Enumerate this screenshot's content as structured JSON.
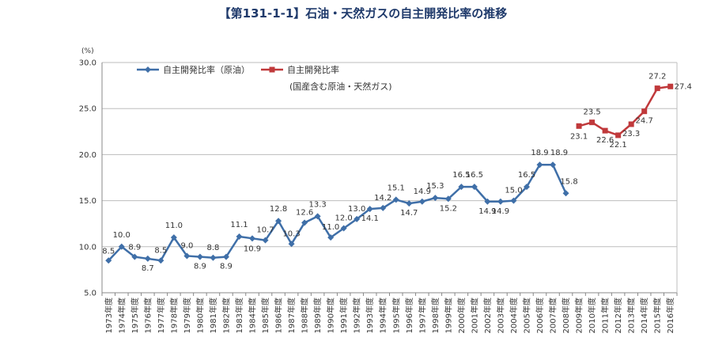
{
  "chart_data": {
    "type": "line",
    "title": "【第131-1-1】石油・天然ガスの自主開発比率の推移",
    "ylabel": "(%)",
    "ylim": [
      5.0,
      30.0
    ],
    "yticks": [
      "5.0",
      "10.0",
      "15.0",
      "20.0",
      "25.0",
      "30.0"
    ],
    "grid": true,
    "legend": "top-left",
    "categories": [
      "1973年度",
      "1974年度",
      "1975年度",
      "1976年度",
      "1977年度",
      "1978年度",
      "1979年度",
      "1980年度",
      "1981年度",
      "1982年度",
      "1983年度",
      "1984年度",
      "1985年度",
      "1986年度",
      "1987年度",
      "1988年度",
      "1989年度",
      "1990年度",
      "1991年度",
      "1992年度",
      "1993年度",
      "1994年度",
      "1995年度",
      "1996年度",
      "1997年度",
      "1998年度",
      "1999年度",
      "2000年度",
      "2001年度",
      "2002年度",
      "2003年度",
      "2004年度",
      "2005年度",
      "2006年度",
      "2007年度",
      "2008年度",
      "2009年度",
      "2010年度",
      "2011年度",
      "2012年度",
      "2013年度",
      "2014年度",
      "2015年度",
      "2016年度"
    ],
    "series": [
      {
        "name": "自主開発比率（原油）",
        "color": "#3f6fa8",
        "marker": "diamond",
        "values": [
          8.5,
          10.0,
          8.9,
          8.7,
          8.5,
          11.0,
          9.0,
          8.9,
          8.8,
          8.9,
          11.1,
          10.9,
          10.7,
          12.8,
          10.3,
          12.6,
          13.3,
          11.0,
          12.0,
          13.0,
          14.1,
          14.2,
          15.1,
          14.7,
          14.9,
          15.3,
          15.2,
          16.5,
          16.5,
          14.9,
          14.9,
          15.0,
          16.5,
          18.9,
          18.9,
          15.8,
          null,
          null,
          null,
          null,
          null,
          null,
          null,
          null
        ],
        "labels": [
          "8.5",
          "10.0",
          "8.9",
          "8.7",
          "8.5",
          "11.0",
          "9.0",
          "8.9",
          "8.8",
          "8.9",
          "11.1",
          "10.9",
          "10.7",
          "12.8",
          "10.3",
          "12.6",
          "13.3",
          "11.0",
          "12.0",
          "13.0",
          "14.1",
          "14.2",
          "15.1",
          "14.7",
          "14.9",
          "15.3",
          "15.2",
          "16.5",
          "16.5",
          "14.9",
          "14.9",
          "15.0",
          "16.5",
          "18.9",
          "18.9",
          "15.8",
          "",
          "",
          "",
          "",
          "",
          "",
          "",
          ""
        ]
      },
      {
        "name": "自主開発比率",
        "subname": "(国産含む原油・天然ガス)",
        "color": "#c0393b",
        "marker": "square",
        "values": [
          null,
          null,
          null,
          null,
          null,
          null,
          null,
          null,
          null,
          null,
          null,
          null,
          null,
          null,
          null,
          null,
          null,
          null,
          null,
          null,
          null,
          null,
          null,
          null,
          null,
          null,
          null,
          null,
          null,
          null,
          null,
          null,
          null,
          null,
          null,
          null,
          23.1,
          23.5,
          22.6,
          22.1,
          23.3,
          24.7,
          27.2,
          27.4
        ],
        "labels": [
          "",
          "",
          "",
          "",
          "",
          "",
          "",
          "",
          "",
          "",
          "",
          "",
          "",
          "",
          "",
          "",
          "",
          "",
          "",
          "",
          "",
          "",
          "",
          "",
          "",
          "",
          "",
          "",
          "",
          "",
          "",
          "",
          "",
          "",
          "",
          "",
          "23.1",
          "23.5",
          "22.6",
          "22.1",
          "23.3",
          "24.7",
          "27.2",
          "27.4"
        ]
      }
    ]
  }
}
